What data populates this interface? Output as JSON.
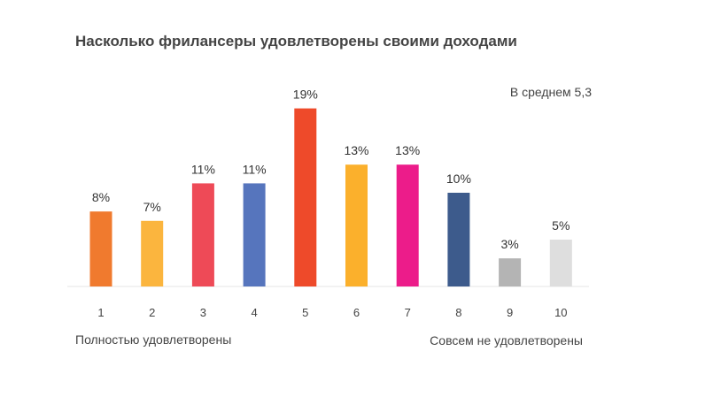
{
  "chart_data": {
    "type": "bar",
    "title": "Насколько фрилансеры удовлетворены своими доходами",
    "annotation": "В среднем 5,3",
    "categories": [
      "1",
      "2",
      "3",
      "4",
      "5",
      "6",
      "7",
      "8",
      "9",
      "10"
    ],
    "values": [
      8,
      7,
      11,
      11,
      19,
      13,
      13,
      10,
      3,
      5
    ],
    "value_labels": [
      "8%",
      "7%",
      "11%",
      "11%",
      "19%",
      "13%",
      "13%",
      "10%",
      "3%",
      "5%"
    ],
    "colors": [
      "#f07a2e",
      "#fbb53e",
      "#ee4a57",
      "#5675bd",
      "#ee4a2a",
      "#fbb02c",
      "#ec1c8a",
      "#3d5b8c",
      "#b4b4b4",
      "#dedede"
    ],
    "x_end_labels": {
      "left": "Полностью удовлетворены",
      "right": "Совсем не удовлетворены"
    },
    "ylim": [
      0,
      20
    ],
    "grid": false
  }
}
